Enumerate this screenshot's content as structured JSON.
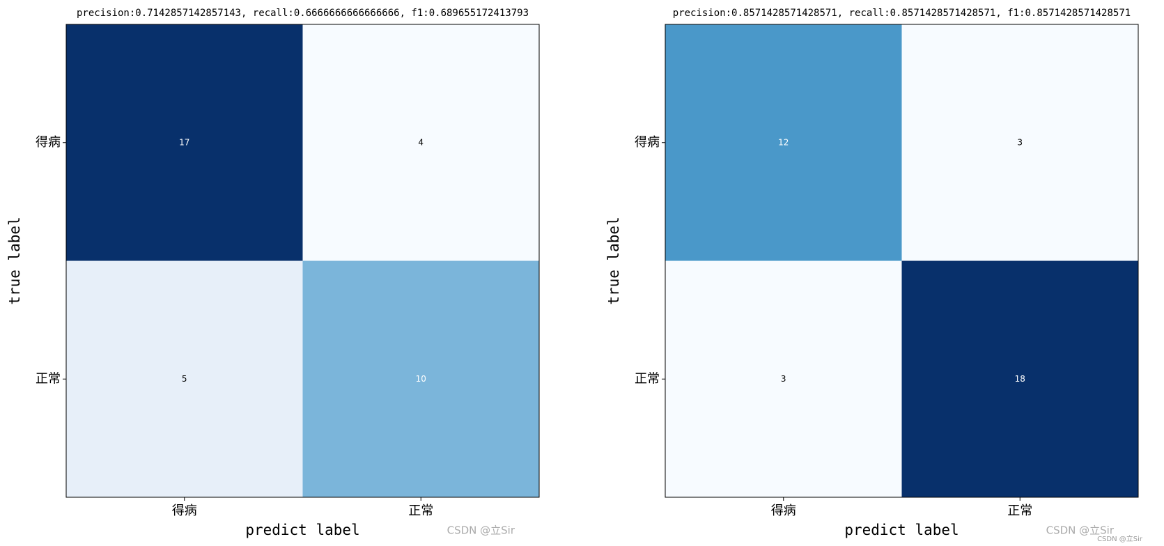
{
  "chart_data": [
    {
      "type": "heatmap",
      "title": "precision:0.7142857142857143, recall:0.6666666666666666, f1:0.689655172413793",
      "x_categories": [
        "得病",
        "正常"
      ],
      "y_categories": [
        "得病",
        "正常"
      ],
      "values": [
        [
          17,
          4
        ],
        [
          5,
          10
        ]
      ],
      "colors": [
        [
          "#08306b",
          "#f7fbff"
        ],
        [
          "#e7eff9",
          "#7bb5da"
        ]
      ],
      "xlabel": "predict label",
      "ylabel": "true label",
      "watermark": "CSDN @立Sir"
    },
    {
      "type": "heatmap",
      "title": "precision:0.8571428571428571, recall:0.8571428571428571, f1:0.8571428571428571",
      "x_categories": [
        "得病",
        "正常"
      ],
      "y_categories": [
        "得病",
        "正常"
      ],
      "values": [
        [
          12,
          3
        ],
        [
          3,
          18
        ]
      ],
      "colors": [
        [
          "#4a98c9",
          "#f7fbff"
        ],
        [
          "#f7fbff",
          "#08306b"
        ]
      ],
      "xlabel": "predict label",
      "ylabel": "true label",
      "watermark": "CSDN @立Sir"
    }
  ],
  "footer_watermark": "CSDN @立Sir"
}
